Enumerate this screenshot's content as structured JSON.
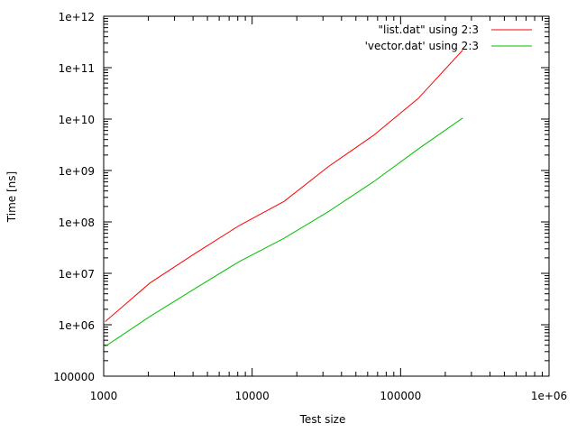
{
  "chart_data": {
    "type": "line",
    "xlabel": "Test size",
    "ylabel": "Time [ns]",
    "x_scale": "log",
    "y_scale": "log",
    "xlim": [
      1000,
      1000000
    ],
    "ylim": [
      100000,
      1000000000000
    ],
    "x_ticks": [
      {
        "value": 1000,
        "label": "1000"
      },
      {
        "value": 10000,
        "label": "10000"
      },
      {
        "value": 100000,
        "label": "100000"
      },
      {
        "value": 1000000,
        "label": "1e+06"
      }
    ],
    "y_ticks": [
      {
        "value": 100000,
        "label": "100000"
      },
      {
        "value": 1000000,
        "label": "1e+06"
      },
      {
        "value": 10000000,
        "label": "1e+07"
      },
      {
        "value": 100000000,
        "label": "1e+08"
      },
      {
        "value": 1000000000,
        "label": "1e+09"
      },
      {
        "value": 10000000000,
        "label": "1e+10"
      },
      {
        "value": 100000000000,
        "label": "1e+11"
      },
      {
        "value": 1000000000000,
        "label": "1e+12"
      }
    ],
    "grid": false,
    "legend_position": "top-right",
    "series": [
      {
        "name": "\"list.dat\" using 2:3",
        "color": "#ff0000",
        "x": [
          1024,
          2048,
          4096,
          8192,
          16384,
          32768,
          65536,
          131072,
          262144
        ],
        "y": [
          1150000,
          6500000,
          24000000,
          85000000,
          250000000,
          1200000000,
          4800000000,
          25000000000,
          220000000000
        ]
      },
      {
        "name": "'vector.dat' using 2:3",
        "color": "#00c000",
        "x": [
          1024,
          2048,
          4096,
          8192,
          16384,
          32768,
          65536,
          131072,
          262144
        ],
        "y": [
          380000,
          1450000,
          5000000,
          17000000,
          48000000,
          160000000,
          600000000,
          2600000000,
          10500000000
        ]
      }
    ]
  }
}
